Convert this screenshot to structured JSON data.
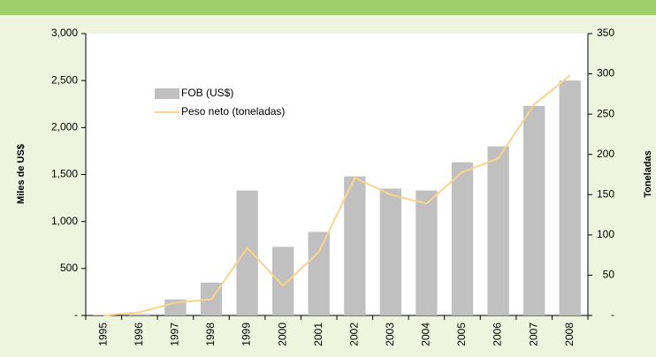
{
  "chart_data": {
    "type": "bar",
    "categories": [
      "1995",
      "1996",
      "1997",
      "1998",
      "1999",
      "2000",
      "2001",
      "2002",
      "2003",
      "2004",
      "2005",
      "2006",
      "2007",
      "2008"
    ],
    "series": [
      {
        "name": "FOB (US$)",
        "color": "#c0c0c0",
        "values": [
          10,
          15,
          170,
          350,
          1330,
          730,
          890,
          1480,
          1350,
          1330,
          1630,
          1800,
          2230,
          2500
        ]
      },
      {
        "name": "Peso neto (toneladas)",
        "color": "#fad48a",
        "axis": "y2",
        "values": [
          0,
          4,
          16,
          20,
          84,
          37,
          79,
          171,
          150,
          139,
          178,
          195,
          262,
          298
        ]
      }
    ],
    "ylabel": "Miles de US$",
    "y2label": "Toneladas",
    "ylim": [
      0,
      3000
    ],
    "yticks": [
      {
        "value": 0,
        "label": "-"
      },
      500,
      {
        "value": 1000,
        "label": "1,000"
      },
      {
        "value": 1500,
        "label": "1,500"
      },
      {
        "value": 2000,
        "label": "2,000"
      },
      {
        "value": 2500,
        "label": "2,500"
      },
      {
        "value": 3000,
        "label": "3,000"
      }
    ],
    "y2lim": [
      0,
      350
    ],
    "y2ticks": [
      {
        "value": 0,
        "label": "-"
      },
      50,
      100,
      150,
      200,
      250,
      300,
      350
    ],
    "grid": false
  }
}
